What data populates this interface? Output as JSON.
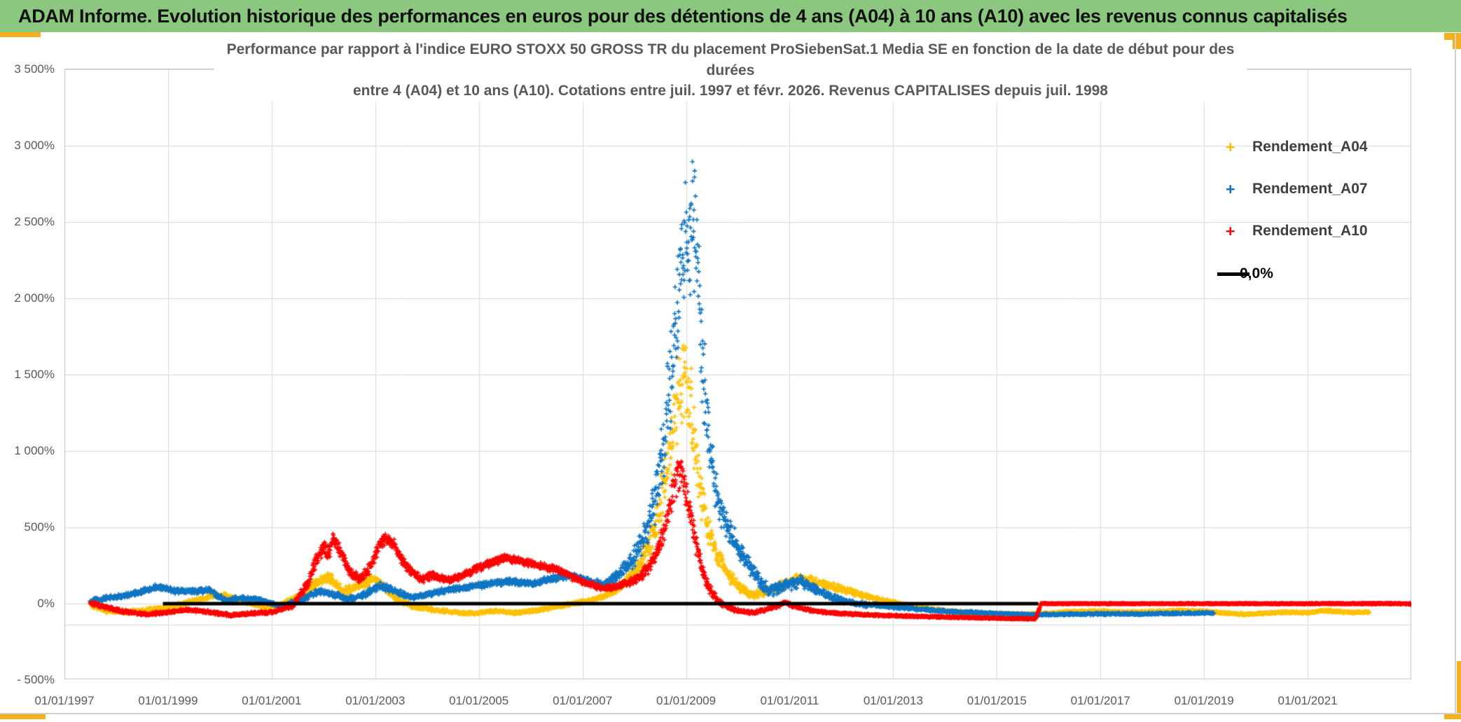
{
  "header": {
    "title": "ADAM Informe. Evolution historique des performances en euros pour des détentions de 4 ans (A04) à 10 ans (A10) avec les revenus connus capitalisés"
  },
  "colors": {
    "header_bg": "#8BC77F",
    "accent_gold": "#F2B01E",
    "grid": "#D9D9D9",
    "frame": "#C6C6C6",
    "title_text": "#595959",
    "axis_text": "#595959",
    "legend_text": "#3F3F3F",
    "series_a04": "#FFC000",
    "series_a07": "#0F74C2",
    "series_a10": "#FF0000",
    "zero_line": "#000000"
  },
  "chart_data": {
    "type": "scatter",
    "title_lines": [
      "Performance par rapport à l'indice EURO STOXX 50 GROSS TR  du placement ProSiebenSat.1 Media SE en fonction de la date de début pour des",
      "durées",
      "entre 4 (A04) et 10 ans (A10). Cotations entre juil. 1997 et févr. 2026. Revenus CAPITALISES depuis juil. 1998"
    ],
    "x_axis": {
      "tick_labels": [
        "01/01/1997",
        "01/01/1999",
        "01/01/2001",
        "01/01/2003",
        "01/01/2005",
        "01/01/2007",
        "01/01/2009",
        "01/01/2011",
        "01/01/2013",
        "01/01/2015",
        "01/01/2017",
        "01/01/2019",
        "01/01/2021"
      ],
      "tick_years": [
        1997,
        1999,
        2001,
        2003,
        2005,
        2007,
        2009,
        2011,
        2013,
        2015,
        2017,
        2019,
        2021
      ],
      "start_year": 1997.0,
      "end_year": 2023.0,
      "gridline_every_years": 2
    },
    "y_axis": {
      "tick_labels": [
        "3 500%",
        "3 000%",
        "2 500%",
        "2 000%",
        "1 500%",
        "1 000%",
        "500%",
        "0%",
        "- 500%"
      ],
      "tick_values": [
        3500,
        3000,
        2500,
        2000,
        1500,
        1000,
        500,
        0,
        -500
      ],
      "min": -500,
      "max": 3500,
      "step": 500,
      "unit": "%",
      "extra_gridline_pct": -138
    },
    "grid": "on",
    "legend_position": "top-right-inside",
    "legend": [
      {
        "label": "Rendement_A04",
        "marker": "plus",
        "color": "#FFC000"
      },
      {
        "label": "Rendement_A07",
        "marker": "plus",
        "color": "#0F74C2"
      },
      {
        "label": "Rendement_A10",
        "marker": "plus",
        "color": "#FF0000"
      },
      {
        "label": "0,0%",
        "marker": "line",
        "color": "#000000"
      }
    ],
    "series": [
      {
        "name": "Rendement_A04",
        "color": "#FFC000",
        "marker": "plus",
        "points_format": [
          "decimal_year",
          "pct",
          "spread_pct"
        ],
        "points": [
          [
            1997.5,
            -5,
            20
          ],
          [
            1997.8,
            -45,
            18
          ],
          [
            1998.1,
            -55,
            16
          ],
          [
            1998.5,
            -45,
            14
          ],
          [
            1999.0,
            -25,
            14
          ],
          [
            1999.4,
            10,
            16
          ],
          [
            1999.8,
            45,
            18
          ],
          [
            2000.1,
            55,
            18
          ],
          [
            2000.5,
            10,
            16
          ],
          [
            2000.9,
            -25,
            14
          ],
          [
            2001.2,
            -5,
            18
          ],
          [
            2001.6,
            60,
            28
          ],
          [
            2001.9,
            140,
            38
          ],
          [
            2002.1,
            170,
            42
          ],
          [
            2002.4,
            80,
            32
          ],
          [
            2002.7,
            120,
            36
          ],
          [
            2002.95,
            160,
            38
          ],
          [
            2003.15,
            120,
            32
          ],
          [
            2003.4,
            30,
            22
          ],
          [
            2003.7,
            -15,
            18
          ],
          [
            2004.1,
            -40,
            14
          ],
          [
            2004.5,
            -55,
            12
          ],
          [
            2004.9,
            -65,
            12
          ],
          [
            2005.3,
            -45,
            12
          ],
          [
            2005.7,
            -60,
            12
          ],
          [
            2006.1,
            -45,
            12
          ],
          [
            2006.5,
            -20,
            12
          ],
          [
            2006.9,
            5,
            14
          ],
          [
            2007.2,
            25,
            14
          ],
          [
            2007.5,
            60,
            18
          ],
          [
            2007.8,
            130,
            38
          ],
          [
            2008.1,
            250,
            75
          ],
          [
            2008.4,
            480,
            140
          ],
          [
            2008.6,
            800,
            210
          ],
          [
            2008.8,
            1300,
            330
          ],
          [
            2008.95,
            1550,
            350
          ],
          [
            2009.1,
            1250,
            300
          ],
          [
            2009.25,
            800,
            200
          ],
          [
            2009.4,
            520,
            120
          ],
          [
            2009.6,
            330,
            80
          ],
          [
            2009.8,
            200,
            55
          ],
          [
            2010.0,
            110,
            38
          ],
          [
            2010.3,
            55,
            28
          ],
          [
            2010.6,
            80,
            28
          ],
          [
            2010.9,
            130,
            35
          ],
          [
            2011.2,
            165,
            38
          ],
          [
            2011.5,
            140,
            32
          ],
          [
            2011.8,
            115,
            28
          ],
          [
            2012.1,
            85,
            24
          ],
          [
            2012.5,
            45,
            18
          ],
          [
            2012.9,
            15,
            14
          ],
          [
            2013.3,
            -15,
            12
          ],
          [
            2013.7,
            -35,
            10
          ],
          [
            2014.1,
            -50,
            10
          ],
          [
            2014.5,
            -60,
            9
          ],
          [
            2015.0,
            -68,
            8
          ],
          [
            2015.5,
            -70,
            8
          ],
          [
            2016.0,
            -62,
            8
          ],
          [
            2016.5,
            -52,
            9
          ],
          [
            2017.0,
            -50,
            9
          ],
          [
            2017.5,
            -56,
            8
          ],
          [
            2018.0,
            -52,
            8
          ],
          [
            2018.5,
            -45,
            9
          ],
          [
            2019.0,
            -50,
            9
          ],
          [
            2019.4,
            -62,
            8
          ],
          [
            2019.8,
            -70,
            8
          ],
          [
            2020.2,
            -62,
            8
          ],
          [
            2020.6,
            -56,
            8
          ],
          [
            2021.0,
            -60,
            8
          ],
          [
            2021.3,
            -45,
            9
          ],
          [
            2021.6,
            -52,
            9
          ],
          [
            2021.9,
            -58,
            8
          ],
          [
            2022.2,
            -55,
            8
          ]
        ]
      },
      {
        "name": "Rendement_A07",
        "color": "#0F74C2",
        "marker": "plus",
        "points_format": [
          "decimal_year",
          "pct",
          "spread_pct"
        ],
        "points": [
          [
            1997.5,
            15,
            18
          ],
          [
            1997.8,
            35,
            18
          ],
          [
            1998.2,
            55,
            18
          ],
          [
            1998.5,
            80,
            20
          ],
          [
            1998.8,
            110,
            20
          ],
          [
            1999.1,
            85,
            20
          ],
          [
            1999.4,
            80,
            20
          ],
          [
            1999.8,
            90,
            22
          ],
          [
            2000.1,
            20,
            18
          ],
          [
            2000.4,
            35,
            18
          ],
          [
            2000.8,
            25,
            16
          ],
          [
            2001.2,
            -20,
            15
          ],
          [
            2001.6,
            30,
            20
          ],
          [
            2001.9,
            80,
            25
          ],
          [
            2002.2,
            60,
            24
          ],
          [
            2002.5,
            30,
            20
          ],
          [
            2002.8,
            60,
            24
          ],
          [
            2003.1,
            120,
            30
          ],
          [
            2003.4,
            80,
            24
          ],
          [
            2003.7,
            40,
            20
          ],
          [
            2004.0,
            60,
            20
          ],
          [
            2004.4,
            90,
            22
          ],
          [
            2004.8,
            110,
            22
          ],
          [
            2005.2,
            130,
            24
          ],
          [
            2005.6,
            145,
            24
          ],
          [
            2006.0,
            130,
            22
          ],
          [
            2006.4,
            160,
            24
          ],
          [
            2006.8,
            185,
            26
          ],
          [
            2007.1,
            150,
            24
          ],
          [
            2007.4,
            125,
            24
          ],
          [
            2007.7,
            190,
            45
          ],
          [
            2007.95,
            280,
            70
          ],
          [
            2008.2,
            430,
            110
          ],
          [
            2008.45,
            750,
            220
          ],
          [
            2008.65,
            1300,
            380
          ],
          [
            2008.85,
            2000,
            480
          ],
          [
            2009.0,
            2400,
            450
          ],
          [
            2009.17,
            2500,
            500
          ],
          [
            2009.3,
            1700,
            400
          ],
          [
            2009.45,
            1000,
            250
          ],
          [
            2009.6,
            700,
            150
          ],
          [
            2009.8,
            500,
            100
          ],
          [
            2010.0,
            380,
            80
          ],
          [
            2010.3,
            200,
            60
          ],
          [
            2010.6,
            80,
            40
          ],
          [
            2010.9,
            120,
            45
          ],
          [
            2011.2,
            150,
            50
          ],
          [
            2011.5,
            90,
            35
          ],
          [
            2011.9,
            30,
            24
          ],
          [
            2012.3,
            0,
            18
          ],
          [
            2012.8,
            -15,
            14
          ],
          [
            2013.3,
            -30,
            12
          ],
          [
            2013.8,
            -45,
            11
          ],
          [
            2014.3,
            -55,
            10
          ],
          [
            2014.8,
            -62,
            9
          ],
          [
            2015.3,
            -68,
            8
          ],
          [
            2015.8,
            -72,
            8
          ],
          [
            2016.3,
            -70,
            8
          ],
          [
            2016.8,
            -68,
            8
          ],
          [
            2017.3,
            -66,
            8
          ],
          [
            2017.8,
            -68,
            8
          ],
          [
            2018.3,
            -64,
            8
          ],
          [
            2018.8,
            -62,
            8
          ],
          [
            2019.2,
            -60,
            8
          ]
        ]
      },
      {
        "name": "Rendement_A10",
        "color": "#FF0000",
        "marker": "plus",
        "points_format": [
          "decimal_year",
          "pct",
          "spread_pct"
        ],
        "points": [
          [
            1997.5,
            5,
            14
          ],
          [
            1997.8,
            -25,
            14
          ],
          [
            1998.2,
            -55,
            13
          ],
          [
            1998.6,
            -70,
            12
          ],
          [
            1999.0,
            -55,
            12
          ],
          [
            1999.4,
            -40,
            12
          ],
          [
            1999.8,
            -55,
            12
          ],
          [
            2000.2,
            -75,
            11
          ],
          [
            2000.6,
            -65,
            11
          ],
          [
            2001.0,
            -55,
            12
          ],
          [
            2001.4,
            -15,
            20
          ],
          [
            2001.7,
            130,
            45
          ],
          [
            2001.85,
            280,
            55
          ],
          [
            2002.0,
            380,
            65
          ],
          [
            2002.1,
            330,
            55
          ],
          [
            2002.2,
            430,
            55
          ],
          [
            2002.35,
            330,
            48
          ],
          [
            2002.5,
            210,
            38
          ],
          [
            2002.7,
            160,
            32
          ],
          [
            2002.9,
            230,
            42
          ],
          [
            2003.05,
            360,
            48
          ],
          [
            2003.2,
            430,
            48
          ],
          [
            2003.35,
            390,
            44
          ],
          [
            2003.5,
            290,
            38
          ],
          [
            2003.7,
            210,
            32
          ],
          [
            2003.9,
            160,
            28
          ],
          [
            2004.1,
            185,
            28
          ],
          [
            2004.4,
            155,
            24
          ],
          [
            2004.7,
            185,
            28
          ],
          [
            2005.0,
            240,
            32
          ],
          [
            2005.3,
            280,
            32
          ],
          [
            2005.6,
            300,
            32
          ],
          [
            2005.9,
            270,
            28
          ],
          [
            2006.2,
            245,
            28
          ],
          [
            2006.5,
            225,
            24
          ],
          [
            2006.8,
            175,
            24
          ],
          [
            2007.1,
            130,
            20
          ],
          [
            2007.4,
            100,
            20
          ],
          [
            2007.7,
            115,
            24
          ],
          [
            2008.0,
            150,
            32
          ],
          [
            2008.25,
            220,
            48
          ],
          [
            2008.5,
            380,
            75
          ],
          [
            2008.7,
            650,
            120
          ],
          [
            2008.85,
            870,
            140
          ],
          [
            2008.95,
            800,
            120
          ],
          [
            2009.1,
            550,
            95
          ],
          [
            2009.25,
            300,
            65
          ],
          [
            2009.4,
            130,
            45
          ],
          [
            2009.6,
            30,
            28
          ],
          [
            2009.8,
            -25,
            18
          ],
          [
            2010.0,
            -45,
            14
          ],
          [
            2010.3,
            -60,
            12
          ],
          [
            2010.6,
            -35,
            14
          ],
          [
            2010.9,
            5,
            14
          ],
          [
            2011.2,
            -25,
            12
          ],
          [
            2011.5,
            -50,
            10
          ],
          [
            2011.9,
            -62,
            10
          ],
          [
            2012.3,
            -70,
            9
          ],
          [
            2012.7,
            -76,
            8
          ],
          [
            2013.1,
            -80,
            8
          ],
          [
            2013.5,
            -84,
            7
          ],
          [
            2014.0,
            -88,
            7
          ],
          [
            2014.5,
            -92,
            6
          ],
          [
            2015.0,
            -96,
            6
          ],
          [
            2015.4,
            -98,
            6
          ],
          [
            2015.75,
            -100,
            6
          ],
          [
            2015.85,
            0,
            4
          ],
          [
            2017.0,
            0,
            4
          ],
          [
            2018.0,
            0,
            4
          ],
          [
            2019.0,
            0,
            4
          ],
          [
            2020.0,
            0,
            4
          ],
          [
            2021.0,
            0,
            5
          ],
          [
            2022.0,
            0,
            5
          ],
          [
            2023.0,
            0,
            8
          ]
        ]
      },
      {
        "name": "0,0%",
        "color": "#000000",
        "marker": "line",
        "points_format": [
          "decimal_year",
          "pct"
        ],
        "points": [
          [
            1998.9,
            0
          ],
          [
            2015.8,
            0
          ]
        ]
      }
    ]
  }
}
